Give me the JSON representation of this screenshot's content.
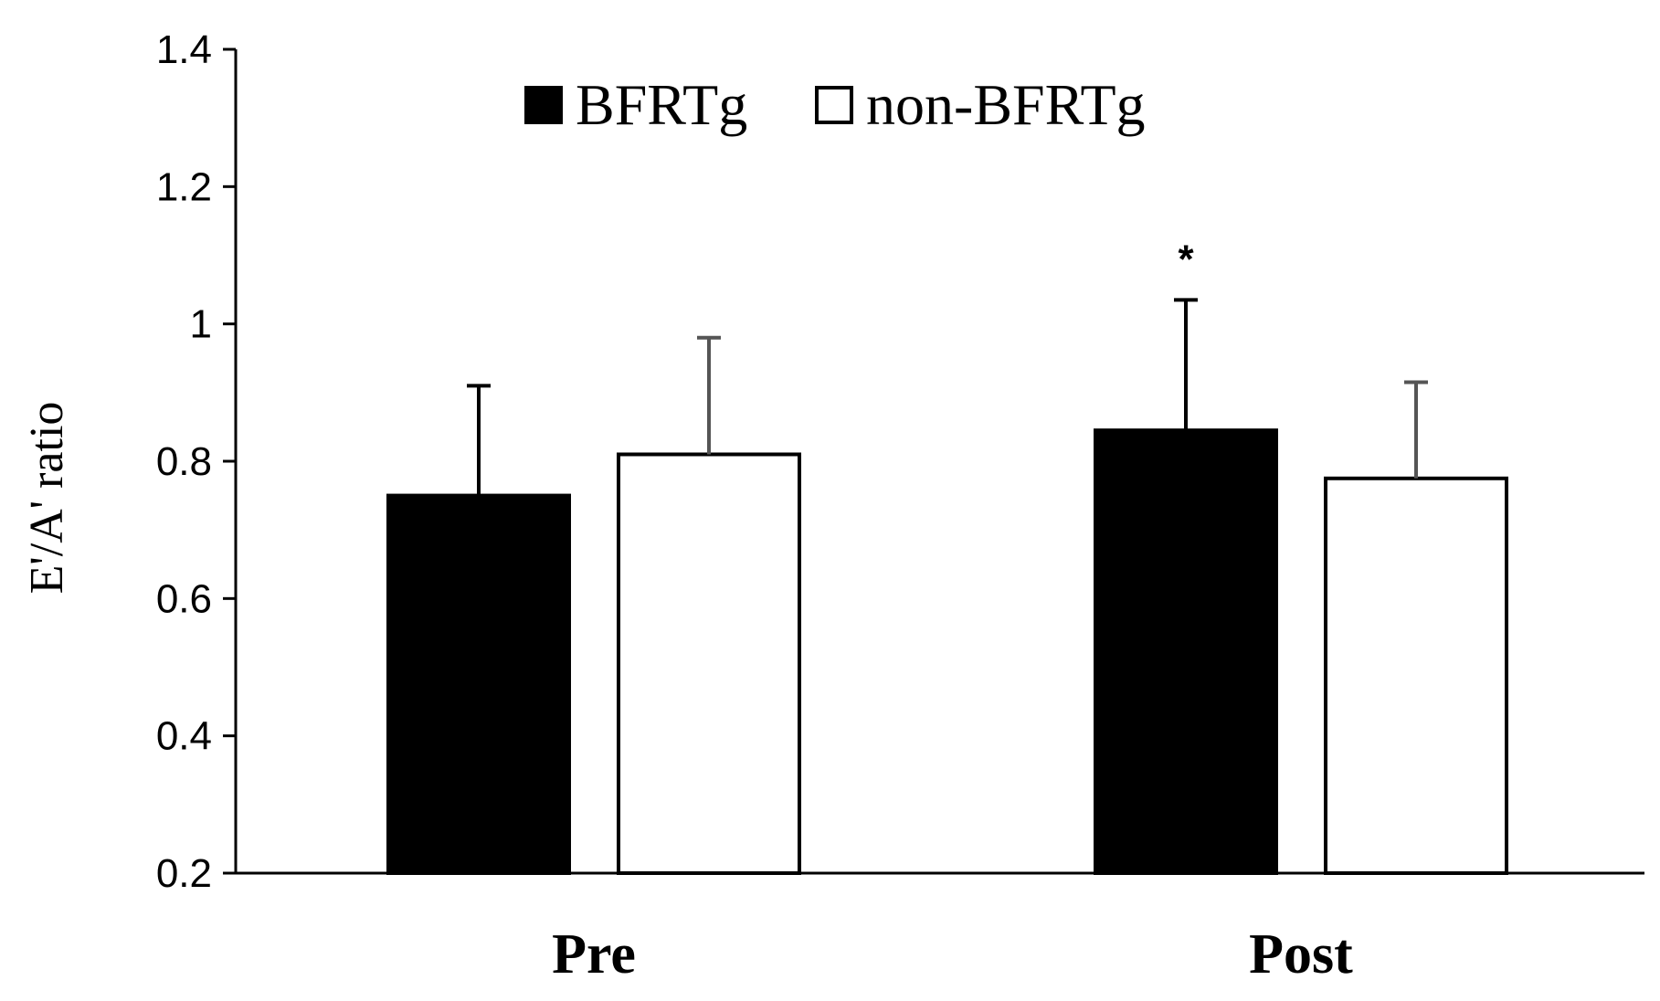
{
  "chart_data": {
    "type": "bar",
    "categories": [
      "Pre",
      "Post"
    ],
    "series": [
      {
        "name": "BFRTg",
        "values": [
          0.75,
          0.845
        ],
        "error": [
          0.16,
          0.19
        ],
        "fill": "#000000",
        "stroke": "#000000",
        "error_color": "#000000",
        "annotations": [
          "",
          "*"
        ]
      },
      {
        "name": "non-BFRTg",
        "values": [
          0.81,
          0.775
        ],
        "error": [
          0.17,
          0.14
        ],
        "fill": "#ffffff",
        "stroke": "#000000",
        "error_color": "#555555",
        "annotations": [
          "",
          ""
        ]
      }
    ],
    "title": "",
    "xlabel": "",
    "ylabel": "E'/A' ratio",
    "ylim": [
      0.2,
      1.4
    ],
    "yticks": [
      "0.2",
      "0.4",
      "0.6",
      "0.8",
      "1",
      "1.2",
      "1.4"
    ],
    "grid": false,
    "legend_position": "top-center"
  }
}
